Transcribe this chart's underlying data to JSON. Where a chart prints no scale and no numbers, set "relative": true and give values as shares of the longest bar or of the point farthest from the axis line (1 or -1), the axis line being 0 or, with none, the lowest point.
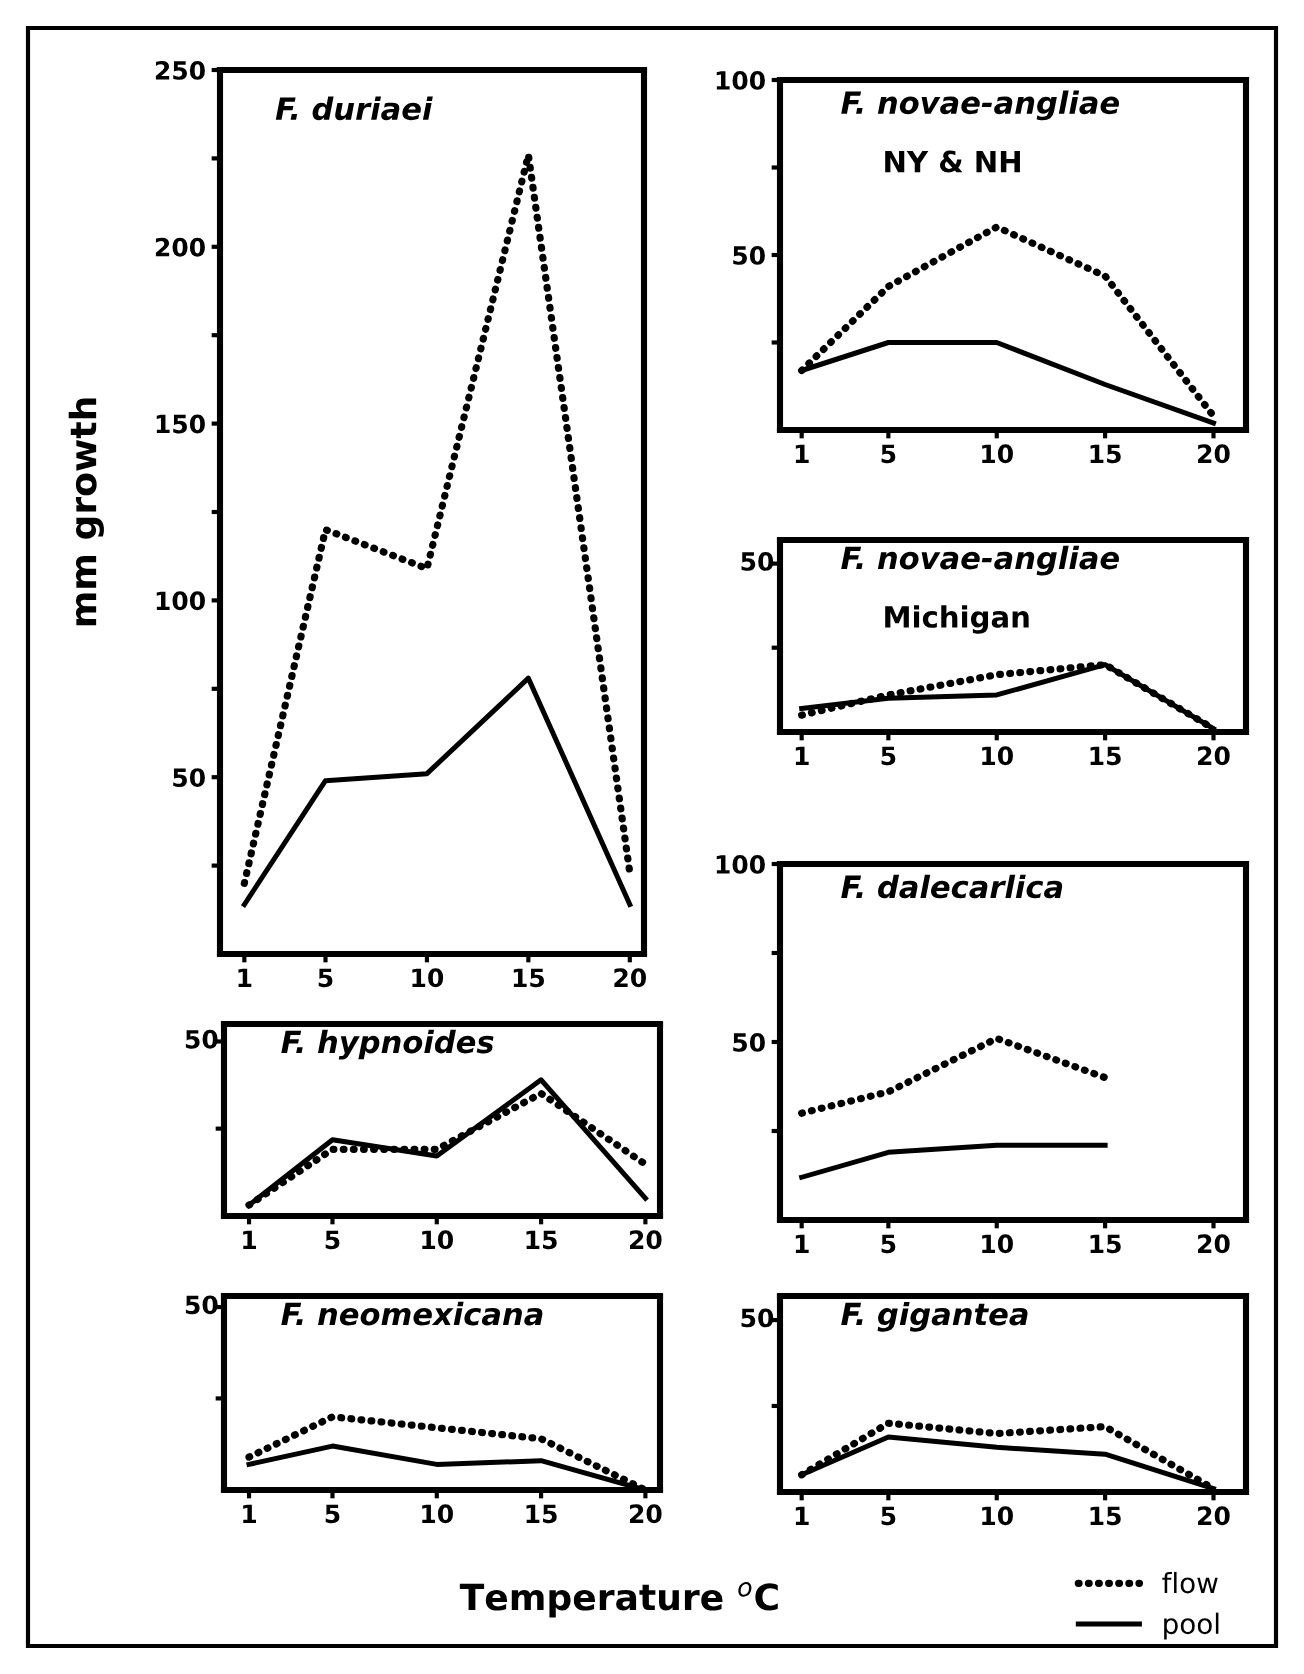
{
  "chart_data": [
    {
      "type": "line",
      "title": "F. duriaei",
      "ylabel": "mm growth",
      "x": [
        1,
        5,
        10,
        15,
        20
      ],
      "xlim": [
        -0.2,
        20.7
      ],
      "xticks": [
        1,
        5,
        10,
        15,
        20
      ],
      "ylim": [
        0,
        250
      ],
      "yticks": [
        {
          "value": 25,
          "label": null
        },
        50,
        {
          "value": 75,
          "label": null
        },
        100,
        {
          "value": 125,
          "label": null
        },
        150,
        {
          "value": 175,
          "label": null
        },
        200,
        {
          "value": 225,
          "label": null
        },
        250
      ],
      "series": [
        {
          "color": "#000000",
          "line_style": "dotted",
          "values": [
            20,
            120,
            109,
            226,
            23
          ]
        },
        {
          "color": "#000000",
          "line_style": "solid",
          "values": [
            14,
            49,
            51,
            78,
            14
          ]
        }
      ]
    },
    {
      "type": "line",
      "title": "F. novae-angliae",
      "subtitle": "NY & NH",
      "x": [
        1,
        5,
        10,
        15,
        20
      ],
      "xlim": [
        0,
        21.5
      ],
      "xticks": [
        1,
        5,
        10,
        15,
        20
      ],
      "ylim": [
        0,
        100
      ],
      "yticks": [
        {
          "value": 25,
          "label": null
        },
        50,
        {
          "value": 75,
          "label": null
        },
        100
      ],
      "series": [
        {
          "color": "#000000",
          "line_style": "dotted",
          "values": [
            17,
            41,
            58,
            44,
            4
          ]
        },
        {
          "color": "#000000",
          "line_style": "solid",
          "values": [
            17,
            25,
            25,
            13,
            2
          ]
        }
      ]
    },
    {
      "type": "line",
      "relative": true,
      "title": "F. novae-angliae",
      "subtitle": "Michigan",
      "annotations": [
        "50"
      ],
      "x": [
        1,
        5,
        10,
        15,
        20
      ],
      "xlim": [
        0,
        21.5
      ],
      "xticks": [
        1,
        5,
        10,
        15,
        20
      ],
      "series": [
        {
          "color": "#000000",
          "line_style": "dotted",
          "values": [
            0.25,
            0.55,
            0.85,
            1,
            0.05
          ]
        },
        {
          "color": "#000000",
          "line_style": "solid",
          "values": [
            0.35,
            0.5,
            0.55,
            1,
            0.05
          ]
        }
      ]
    },
    {
      "type": "line",
      "title": "F. dalecarlica",
      "x": [
        1,
        5,
        10,
        15
      ],
      "xlim": [
        0,
        21.5
      ],
      "xticks": [
        1,
        5,
        10,
        15,
        20
      ],
      "ylim": [
        0,
        100
      ],
      "yticks": [
        {
          "value": 25,
          "label": null
        },
        50,
        {
          "value": 75,
          "label": null
        },
        100
      ],
      "series": [
        {
          "color": "#000000",
          "line_style": "dotted",
          "values": [
            30,
            36,
            51,
            40
          ]
        },
        {
          "color": "#000000",
          "line_style": "solid",
          "values": [
            12,
            19,
            21,
            21
          ]
        }
      ]
    },
    {
      "type": "line",
      "relative": true,
      "title": "F. hypnoides",
      "annotations": [
        "50"
      ],
      "x": [
        1,
        5,
        10,
        15,
        20
      ],
      "xlim": [
        -0.2,
        20.7
      ],
      "xticks": [
        1,
        5,
        10,
        15,
        20
      ],
      "series": [
        {
          "color": "#000000",
          "line_style": "dotted",
          "values": [
            0.08,
            0.49,
            0.49,
            0.9,
            0.38
          ]
        },
        {
          "color": "#000000",
          "line_style": "solid",
          "values": [
            0.08,
            0.56,
            0.44,
            1,
            0.13
          ]
        }
      ]
    },
    {
      "type": "line",
      "relative": true,
      "title": "F. neomexicana",
      "xlabel": "Temperature $^{o}$C",
      "annotations": [
        "50"
      ],
      "x": [
        1,
        5,
        10,
        15,
        20
      ],
      "xlim": [
        -0.2,
        20.7
      ],
      "xticks": [
        1,
        5,
        10,
        15,
        20
      ],
      "series": [
        {
          "color": "#000000",
          "line_style": "dotted",
          "values": [
            0.45,
            1,
            0.85,
            0.7,
            0
          ]
        },
        {
          "color": "#000000",
          "line_style": "solid",
          "values": [
            0.35,
            0.6,
            0.35,
            0.4,
            0
          ]
        }
      ]
    },
    {
      "type": "line",
      "relative": true,
      "title": "F. gigantea",
      "legend": "bottom right",
      "annotations": [
        "50"
      ],
      "x": [
        1,
        5,
        10,
        15,
        20
      ],
      "xlim": [
        0,
        21.5
      ],
      "xticks": [
        1,
        5,
        10,
        15,
        20
      ],
      "series": [
        {
          "name": "flow",
          "color": "#000000",
          "line_style": "dotted",
          "values": [
            0.25,
            1,
            0.85,
            0.95,
            0.05
          ]
        },
        {
          "name": "pool",
          "color": "#000000",
          "line_style": "solid",
          "values": [
            0.25,
            0.8,
            0.65,
            0.55,
            0.05
          ]
        }
      ]
    }
  ]
}
